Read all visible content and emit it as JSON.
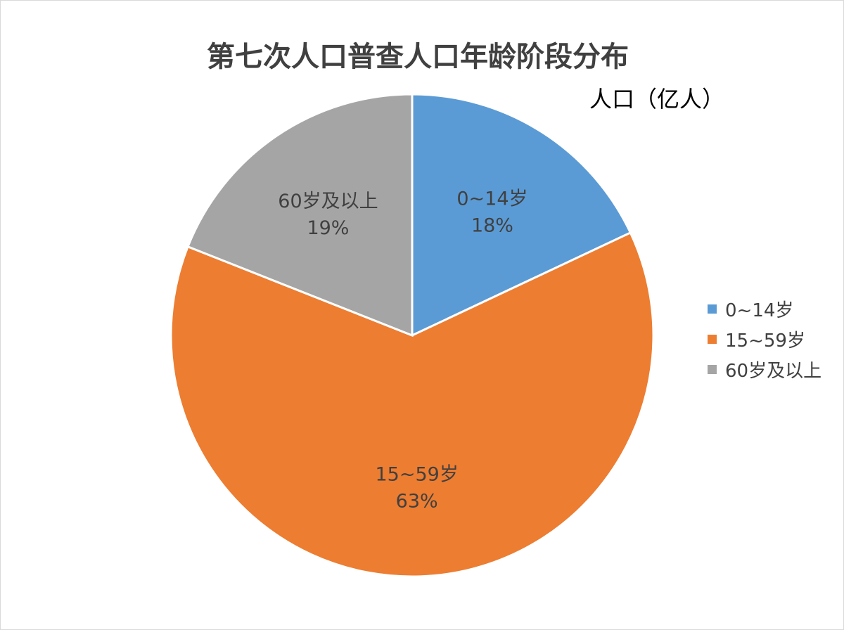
{
  "chart_data": {
    "type": "pie",
    "title": "第七次人口普查人口年龄阶段分布",
    "unit_label": "人口（亿人）",
    "categories": [
      "0~14岁",
      "15~59岁",
      "60岁及以上"
    ],
    "values": [
      18,
      63,
      19
    ],
    "value_labels": [
      "18%",
      "63%",
      "19%"
    ],
    "colors": [
      "#5b9bd5",
      "#ed7d31",
      "#a5a5a5"
    ],
    "legend": {
      "position": "right",
      "entries": [
        "0~14岁",
        "15~59岁",
        "60岁及以上"
      ]
    }
  }
}
